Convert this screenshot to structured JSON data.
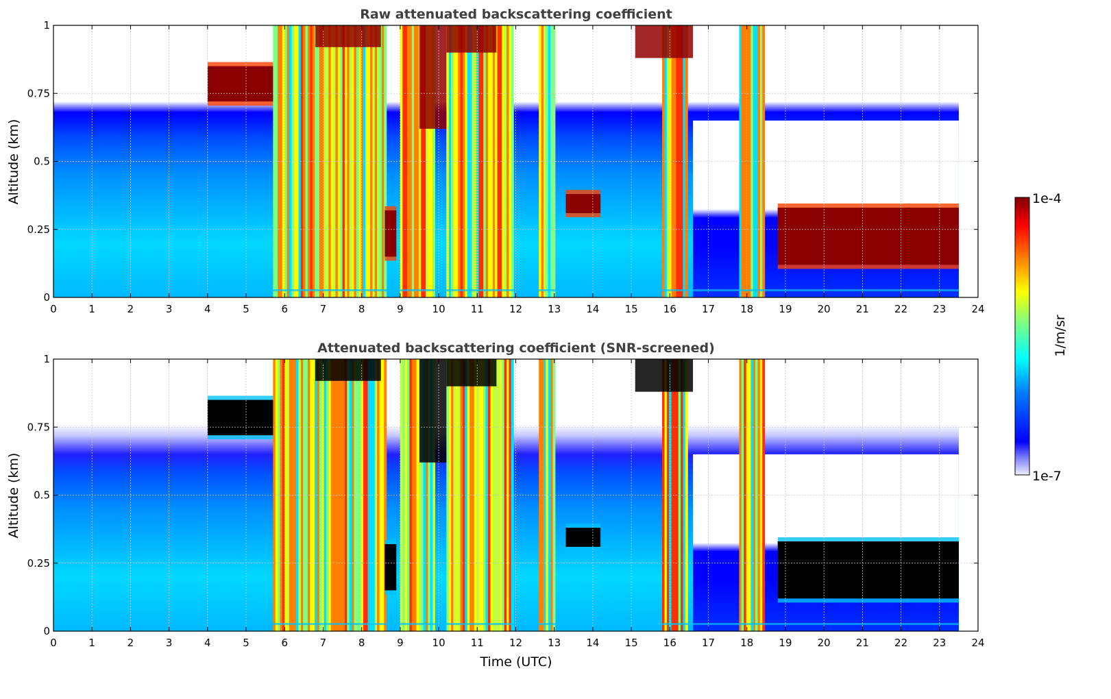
{
  "chart_data": [
    {
      "type": "heatmap",
      "title": "Raw attenuated backscattering coefficient",
      "xlabel": "",
      "ylabel": "Altitude (km)",
      "xlim": [
        0,
        24
      ],
      "ylim": [
        0,
        1
      ],
      "xticks": [
        "0",
        "1",
        "2",
        "3",
        "4",
        "5",
        "6",
        "7",
        "8",
        "9",
        "10",
        "11",
        "12",
        "13",
        "14",
        "15",
        "16",
        "17",
        "18",
        "19",
        "20",
        "21",
        "22",
        "23",
        "24"
      ],
      "yticks": [
        "0",
        "0.25",
        "0.5",
        "0.75",
        "1"
      ],
      "xtick_values": [
        0,
        1,
        2,
        3,
        4,
        5,
        6,
        7,
        8,
        9,
        10,
        11,
        12,
        13,
        14,
        15,
        16,
        17,
        18,
        19,
        20,
        21,
        22,
        23,
        24
      ],
      "ytick_values": [
        0,
        0.25,
        0.5,
        0.75,
        1
      ],
      "grid": true,
      "data_end_time": 23.5,
      "cloud_layers": [
        {
          "start": 4.0,
          "end": 5.7,
          "base_km": 0.72,
          "top_km": 0.85
        },
        {
          "start": 8.6,
          "end": 8.9,
          "base_km": 0.15,
          "top_km": 0.32
        },
        {
          "start": 13.3,
          "end": 14.2,
          "base_km": 0.31,
          "top_km": 0.38
        },
        {
          "start": 18.8,
          "end": 23.5,
          "base_km": 0.12,
          "top_km": 0.33
        }
      ]
    },
    {
      "type": "heatmap",
      "title": "Attenuated backscattering coefficient (SNR-screened)",
      "xlabel": "Time (UTC)",
      "ylabel": "Altitude (km)",
      "xlim": [
        0,
        24
      ],
      "ylim": [
        0,
        1
      ],
      "xticks": [
        "0",
        "1",
        "2",
        "3",
        "4",
        "5",
        "6",
        "7",
        "8",
        "9",
        "10",
        "11",
        "12",
        "13",
        "14",
        "15",
        "16",
        "17",
        "18",
        "19",
        "20",
        "21",
        "22",
        "23",
        "24"
      ],
      "yticks": [
        "0",
        "0.25",
        "0.5",
        "0.75",
        "1"
      ],
      "xtick_values": [
        0,
        1,
        2,
        3,
        4,
        5,
        6,
        7,
        8,
        9,
        10,
        11,
        12,
        13,
        14,
        15,
        16,
        17,
        18,
        19,
        20,
        21,
        22,
        23,
        24
      ],
      "ytick_values": [
        0,
        0.25,
        0.5,
        0.75,
        1
      ],
      "grid": true,
      "data_end_time": 23.5,
      "cloud_layers": [
        {
          "start": 4.0,
          "end": 5.7,
          "base_km": 0.72,
          "top_km": 0.85
        },
        {
          "start": 8.6,
          "end": 8.9,
          "base_km": 0.15,
          "top_km": 0.32
        },
        {
          "start": 13.3,
          "end": 14.2,
          "base_km": 0.31,
          "top_km": 0.38
        },
        {
          "start": 18.8,
          "end": 23.5,
          "base_km": 0.12,
          "top_km": 0.33
        }
      ]
    }
  ],
  "colorbar": {
    "label": "1/m/sr",
    "max_label": "1e-4",
    "min_label": "1e-7",
    "scale": "log",
    "range": [
      1e-07,
      0.0001
    ]
  },
  "colors": {
    "title": "#404040",
    "grid": "#c8c8c8",
    "axis": "#000000",
    "saturated": "#000000",
    "jet": [
      "#eeeeff",
      "#0000ff",
      "#0080ff",
      "#00ffff",
      "#80ff80",
      "#ffff00",
      "#ff8000",
      "#ff0000",
      "#800000"
    ]
  }
}
